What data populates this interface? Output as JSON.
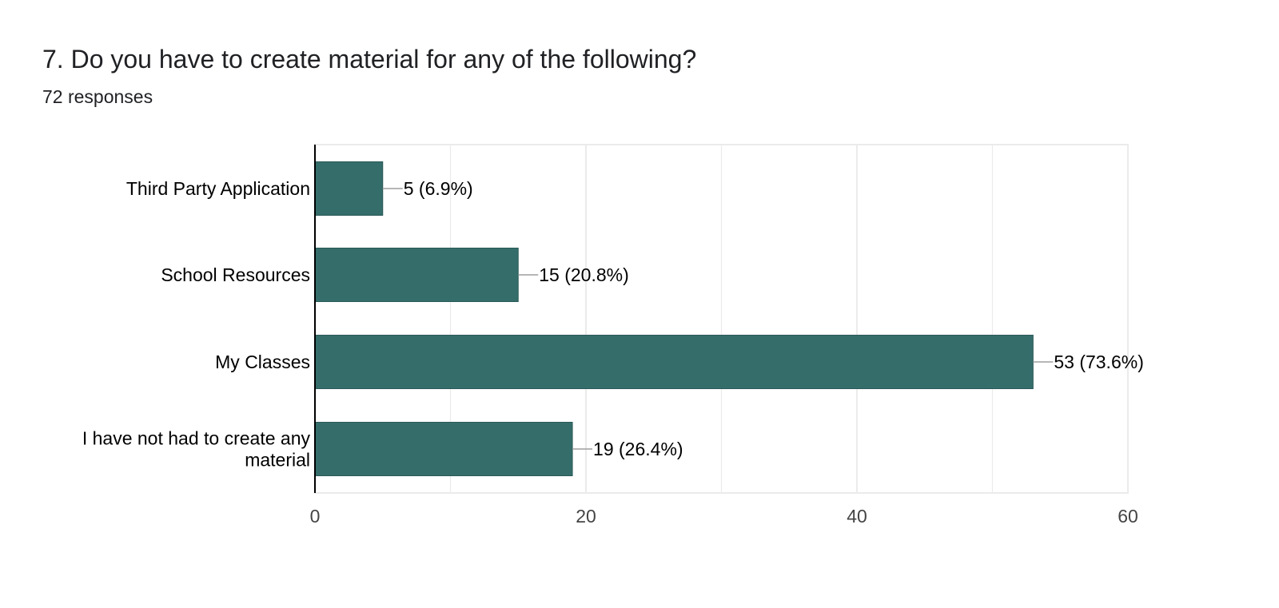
{
  "question": {
    "title": "7. Do you have to create material for any of the following?",
    "responses": "72 responses"
  },
  "colors": {
    "bar": "#356d6b",
    "bar_border": "#2a5a58",
    "grid": "#ebebeb",
    "axis": "#000000",
    "leader": "#9e9e9e",
    "text": "#202124",
    "tick_text": "#444444"
  },
  "chart_data": {
    "type": "bar",
    "orientation": "horizontal",
    "categories": [
      [
        "Third Party Application"
      ],
      [
        "School Resources"
      ],
      [
        "My Classes"
      ],
      [
        "I have not had to create any",
        "material"
      ]
    ],
    "values": [
      5,
      15,
      53,
      19
    ],
    "data_labels": [
      "5 (6.9%)",
      "15 (20.8%)",
      "53 (73.6%)",
      "19 (26.4%)"
    ],
    "xlim": [
      0,
      60
    ],
    "xticks": [
      0,
      20,
      40,
      60
    ],
    "minor_gridlines": [
      10,
      30,
      50
    ],
    "grid": true,
    "legend": "none",
    "title": "",
    "xlabel": "",
    "ylabel": ""
  }
}
